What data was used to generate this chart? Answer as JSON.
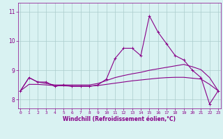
{
  "xlabel": "Windchill (Refroidissement éolien,°C)",
  "x_values": [
    0,
    1,
    2,
    3,
    4,
    5,
    6,
    7,
    8,
    9,
    10,
    11,
    12,
    13,
    14,
    15,
    16,
    17,
    18,
    19,
    20,
    21,
    22,
    23
  ],
  "line1_y": [
    8.3,
    8.75,
    8.6,
    8.6,
    8.45,
    8.5,
    8.45,
    8.45,
    8.45,
    8.5,
    8.7,
    9.4,
    9.75,
    9.75,
    9.5,
    10.85,
    10.3,
    9.9,
    9.5,
    9.35,
    9.0,
    8.75,
    7.85,
    8.3
  ],
  "smooth1_y": [
    8.3,
    8.75,
    8.6,
    8.55,
    8.5,
    8.5,
    8.5,
    8.5,
    8.5,
    8.55,
    8.65,
    8.75,
    8.82,
    8.88,
    8.93,
    9.0,
    9.05,
    9.1,
    9.15,
    9.2,
    9.12,
    9.02,
    8.75,
    8.3
  ],
  "smooth2_y": [
    8.3,
    8.52,
    8.52,
    8.5,
    8.48,
    8.47,
    8.46,
    8.46,
    8.46,
    8.48,
    8.52,
    8.56,
    8.6,
    8.64,
    8.67,
    8.7,
    8.73,
    8.75,
    8.76,
    8.76,
    8.73,
    8.7,
    8.52,
    8.3
  ],
  "line_color": "#880088",
  "bg_color": "#d9f2f2",
  "grid_color": "#aacccc",
  "ylim": [
    7.7,
    11.3
  ],
  "yticks": [
    8,
    9,
    10,
    11
  ],
  "xticks": [
    0,
    1,
    2,
    3,
    4,
    5,
    6,
    7,
    8,
    9,
    10,
    11,
    12,
    13,
    14,
    15,
    16,
    17,
    18,
    19,
    20,
    21,
    22,
    23
  ]
}
